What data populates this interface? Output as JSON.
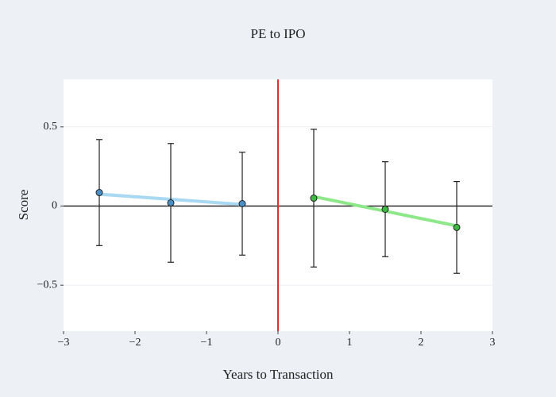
{
  "chart_data": {
    "type": "errorbar",
    "title": "PE to IPO",
    "x_label": "Years to Transaction",
    "y_label": "Score",
    "xlim": [
      -3,
      3
    ],
    "ylim": [
      -0.79,
      0.8
    ],
    "xticks": [
      {
        "value": -3,
        "label": "−3"
      },
      {
        "value": -2,
        "label": "−2"
      },
      {
        "value": -1,
        "label": "−1"
      },
      0,
      1,
      2,
      3
    ],
    "yticks": [
      {
        "value": -0.5,
        "label": "−0.5"
      },
      0,
      0.5
    ],
    "grid": true,
    "zeroline": true,
    "vline": {
      "x": 0,
      "color": "#e0302f"
    },
    "series": [
      {
        "color": "#4a90c8",
        "x": [
          -2.5,
          -1.5,
          -0.5
        ],
        "values": [
          0.085,
          0.02,
          0.015
        ],
        "error": [
          0.335,
          0.375,
          0.325
        ]
      },
      {
        "color": "#3cb843",
        "x": [
          0.5,
          1.5,
          2.5
        ],
        "values": [
          0.05,
          -0.02,
          -0.135
        ],
        "error": [
          0.435,
          0.3,
          0.29
        ]
      }
    ],
    "lines": [
      {
        "color": "#a8d8f2",
        "x": [
          -2.5,
          -0.5
        ],
        "values": [
          0.075,
          0.01
        ]
      },
      {
        "color": "#8ee88a",
        "x": [
          0.5,
          2.5
        ],
        "values": [
          0.06,
          -0.125
        ]
      }
    ]
  }
}
